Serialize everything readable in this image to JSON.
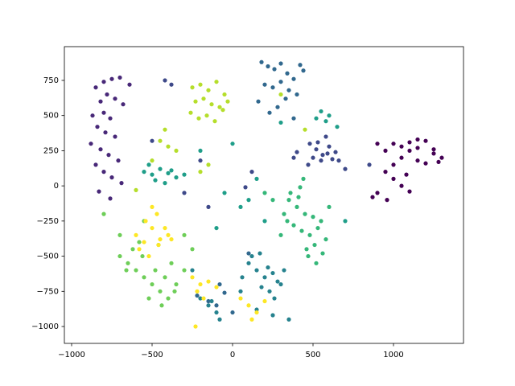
{
  "chart_data": {
    "type": "scatter",
    "xlim": [
      -1045,
      1435
    ],
    "ylim": [
      -1120,
      990
    ],
    "xticks": [
      {
        "value": -1000,
        "label": "−1000"
      },
      {
        "value": -500,
        "label": "−500"
      },
      0,
      500,
      1000
    ],
    "yticks": [
      {
        "value": -1000,
        "label": "−1000"
      },
      {
        "value": -750,
        "label": "−750"
      },
      {
        "value": -500,
        "label": "−500"
      },
      {
        "value": -250,
        "label": "−250"
      },
      0,
      250,
      500,
      750
    ],
    "series": [
      {
        "color": "#440154",
        "x": [
          900,
          950,
          1000,
          1050,
          1100,
          1150,
          1200,
          1250,
          1300,
          1000,
          1050,
          1100,
          1150,
          1200,
          950,
          900,
          1000,
          1050,
          1100,
          870,
          1150,
          1250,
          1280,
          960,
          1080
        ],
        "y": [
          300,
          250,
          300,
          280,
          310,
          270,
          320,
          230,
          200,
          150,
          200,
          250,
          180,
          160,
          100,
          -50,
          50,
          0,
          -40,
          -80,
          330,
          260,
          170,
          -100,
          80
        ]
      },
      {
        "color": "#482878",
        "x": [
          -850,
          -800,
          -750,
          -700,
          -820,
          -780,
          -730,
          -680,
          -870,
          -800,
          -760,
          -840,
          -790,
          -730,
          -880,
          -820,
          -770,
          -710,
          -850,
          -800,
          -750,
          -690,
          -830,
          -760,
          -640
        ],
        "y": [
          700,
          740,
          760,
          770,
          600,
          650,
          620,
          580,
          500,
          520,
          480,
          420,
          380,
          350,
          300,
          260,
          220,
          180,
          150,
          100,
          60,
          20,
          -40,
          -90,
          720
        ]
      },
      {
        "color": "#3e4989",
        "x": [
          480,
          520,
          560,
          600,
          640,
          500,
          550,
          590,
          620,
          470,
          530,
          580,
          660,
          700,
          400,
          380,
          -420,
          -380,
          -500,
          -300,
          120,
          80,
          -200,
          -150,
          850
        ],
        "y": [
          300,
          260,
          220,
          280,
          240,
          200,
          180,
          230,
          190,
          150,
          310,
          350,
          180,
          120,
          240,
          200,
          750,
          720,
          320,
          -50,
          100,
          -10,
          180,
          -150,
          150
        ]
      },
      {
        "color": "#31688e",
        "x": [
          180,
          220,
          260,
          300,
          340,
          380,
          200,
          250,
          300,
          350,
          400,
          160,
          280,
          330,
          230,
          380,
          420,
          440,
          -150,
          -100,
          -50,
          0,
          -220,
          -80,
          100
        ],
        "y": [
          880,
          850,
          830,
          870,
          800,
          760,
          720,
          700,
          740,
          680,
          650,
          600,
          560,
          620,
          520,
          480,
          860,
          820,
          -820,
          -850,
          -760,
          -900,
          -780,
          -700,
          -480
        ]
      },
      {
        "color": "#26828e",
        "x": [
          100,
          150,
          200,
          250,
          300,
          180,
          230,
          280,
          120,
          170,
          220,
          260,
          320,
          -150,
          -100,
          -200,
          -80,
          -130,
          60,
          350,
          150,
          -250,
          50,
          250
        ],
        "y": [
          -550,
          -600,
          -650,
          -620,
          -700,
          -720,
          -750,
          -680,
          -500,
          -480,
          -580,
          -800,
          -600,
          -850,
          -900,
          -800,
          -950,
          -820,
          -650,
          -950,
          -880,
          -600,
          -750,
          -920
        ]
      },
      {
        "color": "#1f9e89",
        "x": [
          -550,
          -500,
          -450,
          -400,
          -350,
          -480,
          -420,
          -380,
          -300,
          -520,
          550,
          600,
          580,
          520,
          650,
          100,
          50,
          -50,
          150,
          200,
          -200,
          0,
          300,
          700,
          -100
        ],
        "y": [
          100,
          80,
          120,
          90,
          60,
          40,
          20,
          110,
          80,
          150,
          530,
          500,
          460,
          480,
          420,
          -100,
          -150,
          -50,
          50,
          -250,
          250,
          300,
          450,
          -250,
          -300
        ]
      },
      {
        "color": "#35b779",
        "x": [
          350,
          400,
          450,
          500,
          550,
          380,
          430,
          480,
          530,
          580,
          320,
          360,
          410,
          460,
          510,
          560,
          300,
          420,
          470,
          520,
          600,
          250,
          200,
          340,
          440
        ],
        "y": [
          -100,
          -150,
          -200,
          -220,
          -250,
          -280,
          -320,
          -350,
          -300,
          -380,
          -200,
          -50,
          -80,
          -450,
          -420,
          -480,
          -350,
          -10,
          -500,
          -550,
          -150,
          -100,
          -50,
          -250,
          50
        ]
      },
      {
        "color": "#6ece58",
        "x": [
          -700,
          -650,
          -600,
          -550,
          -500,
          -450,
          -400,
          -350,
          -620,
          -560,
          -480,
          -420,
          -380,
          -660,
          -520,
          -440,
          -360,
          -300,
          -700,
          -580,
          -460,
          -300,
          -800,
          -250,
          -550
        ],
        "y": [
          -500,
          -550,
          -600,
          -650,
          -700,
          -750,
          -800,
          -700,
          -450,
          -500,
          -600,
          -650,
          -550,
          -600,
          -800,
          -850,
          -750,
          -600,
          -350,
          -400,
          -420,
          -350,
          -200,
          -450,
          -250
        ]
      },
      {
        "color": "#b5de2b",
        "x": [
          -250,
          -200,
          -150,
          -100,
          -50,
          -230,
          -180,
          -130,
          -80,
          -30,
          -260,
          -210,
          -160,
          -110,
          -60,
          -450,
          -400,
          -350,
          -500,
          -420,
          -200,
          -150,
          300,
          450,
          -600
        ],
        "y": [
          700,
          720,
          680,
          740,
          650,
          600,
          620,
          580,
          560,
          600,
          520,
          480,
          500,
          460,
          540,
          320,
          280,
          250,
          180,
          400,
          100,
          150,
          650,
          400,
          -30
        ]
      },
      {
        "color": "#fde725",
        "x": [
          -600,
          -550,
          -500,
          -450,
          -400,
          -580,
          -520,
          -460,
          -420,
          -380,
          -500,
          -250,
          -200,
          -150,
          -100,
          -220,
          -180,
          50,
          100,
          150,
          200,
          -470,
          -230,
          120,
          -540
        ],
        "y": [
          -350,
          -400,
          -300,
          -380,
          -350,
          -450,
          -500,
          -420,
          -300,
          -380,
          -150,
          -650,
          -700,
          -680,
          -720,
          -750,
          -800,
          -800,
          -850,
          -900,
          -820,
          -200,
          -1000,
          -950,
          -250
        ]
      }
    ]
  }
}
